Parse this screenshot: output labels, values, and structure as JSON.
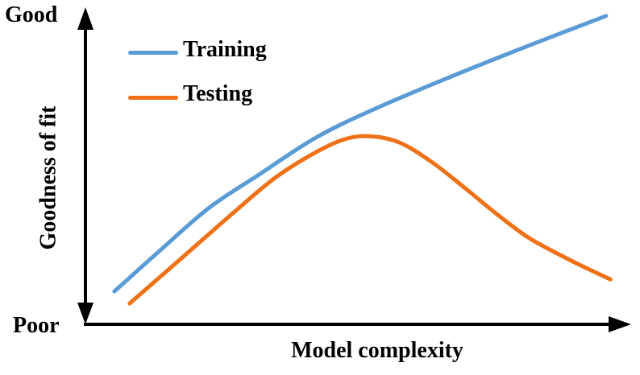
{
  "labels": {
    "y_top": "Good",
    "y_bottom": "Poor",
    "y_axis": "Goodness of fit",
    "x_axis": "Model complexity"
  },
  "colors": {
    "axis": "#000000",
    "text": "#000000",
    "training": "#5B9BD5",
    "testing": "#EE7118"
  },
  "chart_data": {
    "type": "line",
    "title": "",
    "xlabel": "Model complexity",
    "ylabel": "Goodness of fit",
    "y_endpoint_labels": {
      "bottom": "Poor",
      "top": "Good"
    },
    "axes_numeric": false,
    "grid": false,
    "legend_position": "upper-left-inside",
    "x_range": [
      0,
      1
    ],
    "y_range": [
      0,
      1
    ],
    "series": [
      {
        "name": "Training",
        "color": "#5B9BD5",
        "points": [
          [
            0.053,
            0.104
          ],
          [
            0.139,
            0.237
          ],
          [
            0.227,
            0.369
          ],
          [
            0.316,
            0.471
          ],
          [
            0.425,
            0.593
          ],
          [
            0.538,
            0.687
          ],
          [
            0.671,
            0.784
          ],
          [
            0.818,
            0.885
          ],
          [
            0.954,
            0.975
          ]
        ]
      },
      {
        "name": "Testing",
        "color": "#EE7118",
        "points": [
          [
            0.081,
            0.066
          ],
          [
            0.176,
            0.209
          ],
          [
            0.272,
            0.354
          ],
          [
            0.346,
            0.461
          ],
          [
            0.412,
            0.534
          ],
          [
            0.471,
            0.583
          ],
          [
            0.52,
            0.595
          ],
          [
            0.575,
            0.575
          ],
          [
            0.634,
            0.514
          ],
          [
            0.694,
            0.433
          ],
          [
            0.752,
            0.351
          ],
          [
            0.811,
            0.275
          ],
          [
            0.87,
            0.219
          ],
          [
            0.914,
            0.181
          ],
          [
            0.962,
            0.142
          ]
        ]
      }
    ]
  }
}
